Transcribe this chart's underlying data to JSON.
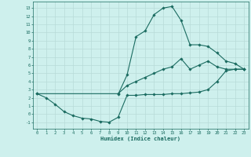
{
  "xlabel": "Humidex (Indice chaleur)",
  "xlim": [
    -0.5,
    23.5
  ],
  "ylim": [
    -1.8,
    13.8
  ],
  "xticks": [
    0,
    1,
    2,
    3,
    4,
    5,
    6,
    7,
    8,
    9,
    10,
    11,
    12,
    13,
    14,
    15,
    16,
    17,
    18,
    19,
    20,
    21,
    22,
    23
  ],
  "yticks": [
    -1,
    0,
    1,
    2,
    3,
    4,
    5,
    6,
    7,
    8,
    9,
    10,
    11,
    12,
    13
  ],
  "bg_color": "#cef0ed",
  "grid_color": "#b8dbd8",
  "line_color": "#1a6b60",
  "lines": [
    {
      "x": [
        0,
        1,
        2,
        3,
        4,
        5,
        6,
        7,
        8,
        9,
        10,
        11,
        12,
        13,
        14,
        15,
        16,
        17,
        18,
        19,
        20,
        21,
        22,
        23
      ],
      "y": [
        2.5,
        2.0,
        1.2,
        0.3,
        -0.2,
        -0.5,
        -0.6,
        -0.9,
        -1.0,
        -0.4,
        2.3,
        2.3,
        2.4,
        2.4,
        2.4,
        2.5,
        2.5,
        2.6,
        2.7,
        3.0,
        4.0,
        5.3,
        5.5,
        5.5
      ]
    },
    {
      "x": [
        0,
        9,
        10,
        11,
        12,
        13,
        14,
        15,
        16,
        17,
        18,
        19,
        20,
        21,
        22,
        23
      ],
      "y": [
        2.5,
        2.5,
        3.5,
        4.0,
        4.5,
        5.0,
        5.5,
        5.8,
        6.8,
        5.5,
        6.0,
        6.5,
        5.8,
        5.5,
        5.5,
        5.5
      ]
    },
    {
      "x": [
        9,
        10,
        11,
        12,
        13,
        14,
        15,
        16,
        17,
        18,
        19,
        20,
        21,
        22,
        23
      ],
      "y": [
        2.4,
        4.8,
        9.5,
        10.2,
        12.2,
        13.0,
        13.2,
        11.5,
        8.5,
        8.5,
        8.3,
        7.5,
        6.5,
        6.2,
        5.5
      ]
    }
  ],
  "marker": "D",
  "marker_size": 1.8,
  "linewidth": 0.8
}
